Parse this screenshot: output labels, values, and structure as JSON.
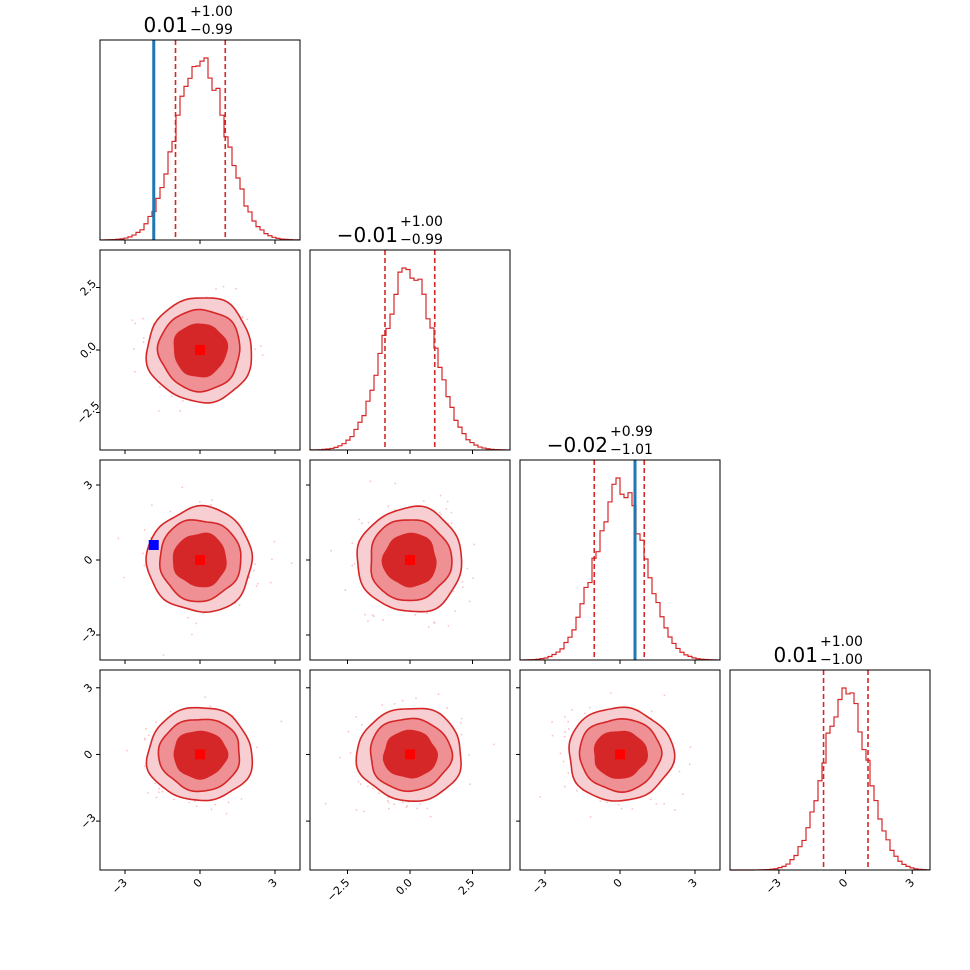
{
  "chart_data": {
    "type": "corner",
    "parameters": 4,
    "colors": {
      "hist": "#d62728",
      "contour_dark": "#d62728",
      "contour_mid": "#ee9094",
      "contour_light": "#f7cfd2",
      "scatter": "#f3b4bb",
      "truth": "#1f77b4",
      "marker_median": "#ff0000",
      "marker_truth": "#0000ff"
    },
    "ranges": [
      [
        -4,
        4
      ],
      [
        -4,
        4
      ],
      [
        -4,
        4
      ],
      [
        -5.2,
        3.8
      ]
    ],
    "ticks": [
      {
        "values": [
          -3,
          0,
          3
        ],
        "labels": [
          "−3",
          "0",
          "3"
        ]
      },
      {
        "values": [
          -2.5,
          0,
          2.5
        ],
        "labels": [
          "−2.5",
          "0.0",
          "2.5"
        ]
      },
      {
        "values": [
          -3,
          0,
          3
        ],
        "labels": [
          "−3",
          "0",
          "3"
        ]
      },
      {
        "values": [
          -3,
          0,
          3
        ],
        "labels": [
          "−3",
          "0",
          "3"
        ]
      }
    ],
    "diagonal": [
      {
        "median": "0.01",
        "plus": "+1.00",
        "minus": "−0.99",
        "q16": -0.98,
        "q84": 1.01,
        "truth": -1.85,
        "sigma": 1.0,
        "center": 0.05
      },
      {
        "median": "−0.01",
        "plus": "+1.00",
        "minus": "−0.99",
        "q16": -1.0,
        "q84": 0.99,
        "truth": null,
        "sigma": 1.0,
        "center": -0.05
      },
      {
        "median": "−0.02",
        "plus": "+0.99",
        "minus": "−1.01",
        "q16": -1.03,
        "q84": 0.97,
        "truth": 0.6,
        "sigma": 1.0,
        "center": 0.0
      },
      {
        "median": "0.01",
        "plus": "+1.00",
        "minus": "−1.00",
        "q16": -0.99,
        "q84": 1.01,
        "truth": null,
        "sigma": 1.0,
        "center": 0.0
      }
    ],
    "pairs": [
      {
        "row": 1,
        "col": 0,
        "median": [
          0.0,
          0.0
        ],
        "truth": null
      },
      {
        "row": 2,
        "col": 0,
        "median": [
          0.0,
          0.0
        ],
        "truth": [
          -1.85,
          0.6
        ]
      },
      {
        "row": 2,
        "col": 1,
        "median": [
          0.0,
          0.0
        ],
        "truth": null
      },
      {
        "row": 3,
        "col": 0,
        "median": [
          0.0,
          0.0
        ],
        "truth": null
      },
      {
        "row": 3,
        "col": 1,
        "median": [
          0.0,
          0.0
        ],
        "truth": null
      },
      {
        "row": 3,
        "col": 2,
        "median": [
          0.0,
          0.0
        ],
        "truth": null
      }
    ],
    "contour_levels_sigma": [
      1.0,
      1.55,
      2.0
    ]
  }
}
